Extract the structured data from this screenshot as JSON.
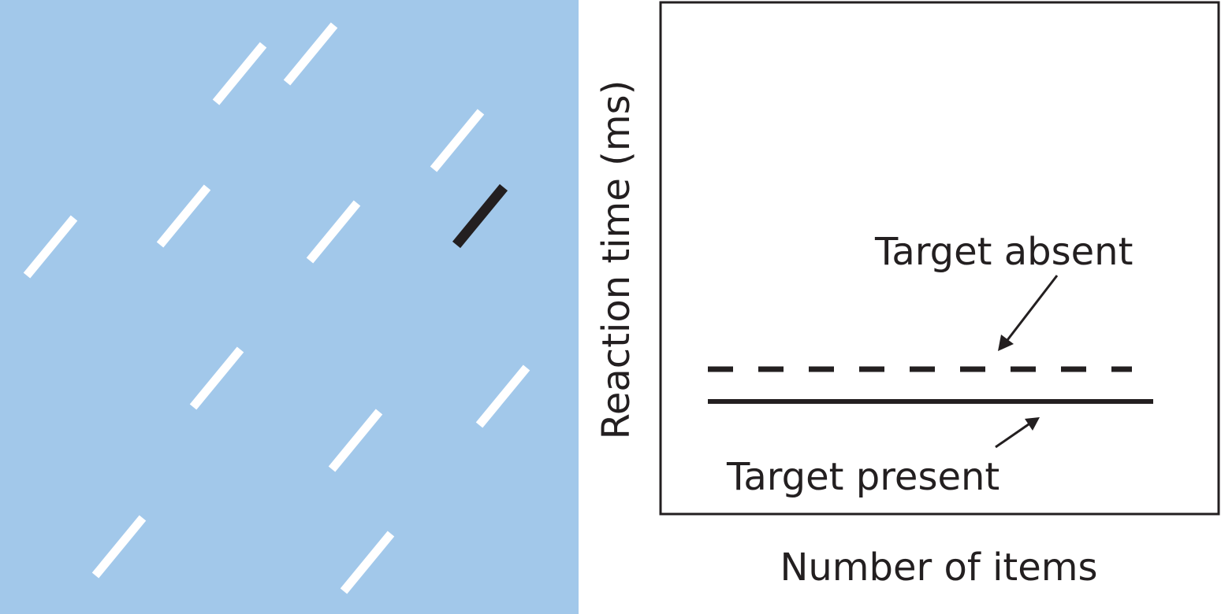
{
  "stimulus_panel": {
    "background_color": "#a2c8ea",
    "distractor_color": "#ffffff",
    "target_color": "#231f20",
    "distractor_count": 12,
    "target_count": 1
  },
  "graph_panel": {
    "y_axis_label": "Reaction time (ms)",
    "x_axis_label": "Number of items",
    "lines": [
      {
        "label": "Target absent",
        "style": "dashed",
        "trend": "flat"
      },
      {
        "label": "Target present",
        "style": "solid",
        "trend": "flat"
      }
    ],
    "line_color": "#231f20"
  }
}
